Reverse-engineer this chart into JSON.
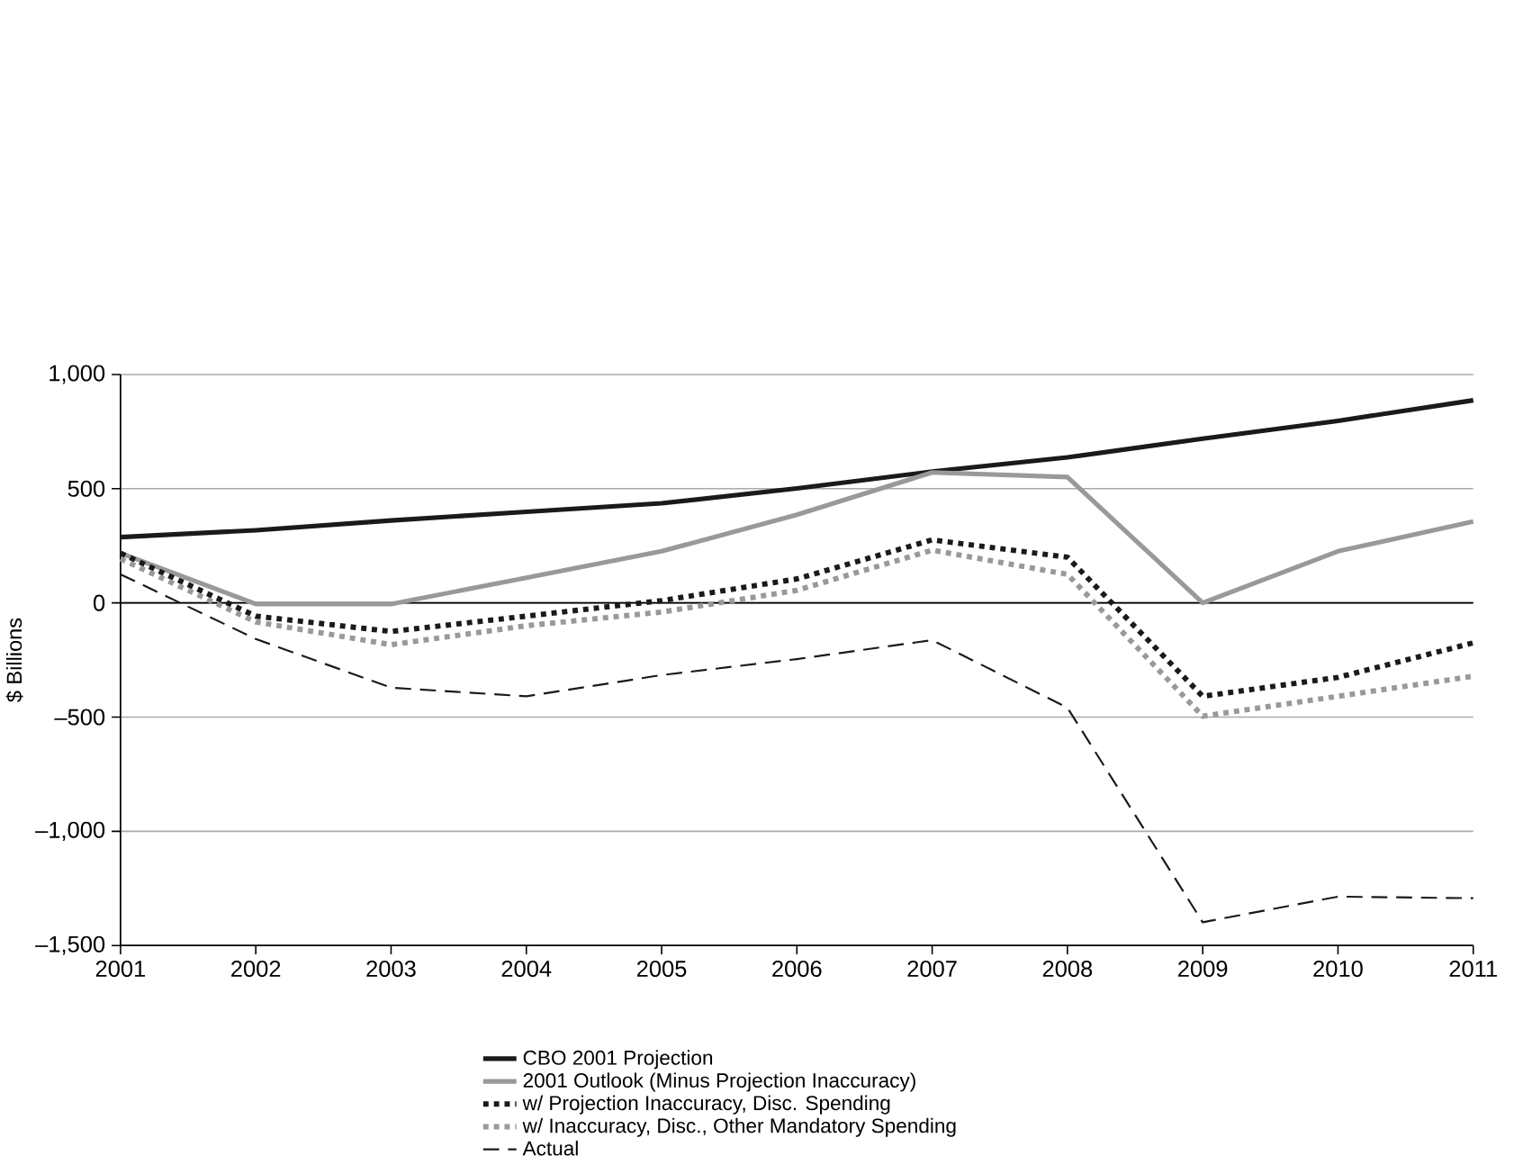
{
  "chart_data": {
    "type": "line",
    "ylabel": "$ Billions",
    "x": [
      2001,
      2002,
      2003,
      2004,
      2005,
      2006,
      2007,
      2008,
      2009,
      2010,
      2011
    ],
    "series": [
      {
        "name": "CBO 2001 Projection",
        "color": "#1a1a1a",
        "line_style": "solid",
        "values": [
          288,
          318,
          361,
          399,
          436,
          501,
          575,
          637,
          719,
          797,
          887
        ]
      },
      {
        "name": "2001 Outlook (Minus Projection Inaccuracy)",
        "color": "#999999",
        "line_style": "solid",
        "values": [
          218,
          -5,
          -5,
          110,
          226,
          386,
          571,
          551,
          0,
          226,
          356
        ]
      },
      {
        "name": "w/ Projection Inaccuracy, Disc. Spending",
        "color": "#1a1a1a",
        "line_style": "dotted",
        "values": [
          218,
          -58,
          -125,
          -58,
          10,
          105,
          276,
          200,
          -409,
          -326,
          -175
        ]
      },
      {
        "name": "w/ Inaccuracy, Disc., Other Mandatory Spending",
        "color": "#999999",
        "line_style": "dotted",
        "values": [
          193,
          -83,
          -183,
          -100,
          -40,
          55,
          231,
          125,
          -496,
          -409,
          -321
        ]
      },
      {
        "name": "Actual",
        "color": "#1a1a1a",
        "line_style": "dashed",
        "values": [
          125,
          -158,
          -371,
          -409,
          -316,
          -246,
          -163,
          -459,
          -1398,
          -1286,
          -1293
        ]
      }
    ],
    "xlim": [
      2001,
      2011
    ],
    "xticks": [
      2001,
      2002,
      2003,
      2004,
      2005,
      2006,
      2007,
      2008,
      2009,
      2010,
      2011
    ],
    "ylim": [
      -1500,
      1000
    ],
    "yticks": [
      {
        "value": -1500,
        "label": "–1,500"
      },
      {
        "value": -1000,
        "label": "–1,000"
      },
      {
        "value": -500,
        "label": "–500"
      },
      0,
      500,
      {
        "value": 1000,
        "label": "1,000"
      }
    ],
    "ref_lines": [
      {
        "axis": "y",
        "value": 0,
        "color": "#000000"
      }
    ],
    "grid": "y",
    "legend": "bottom",
    "marker": "none"
  }
}
